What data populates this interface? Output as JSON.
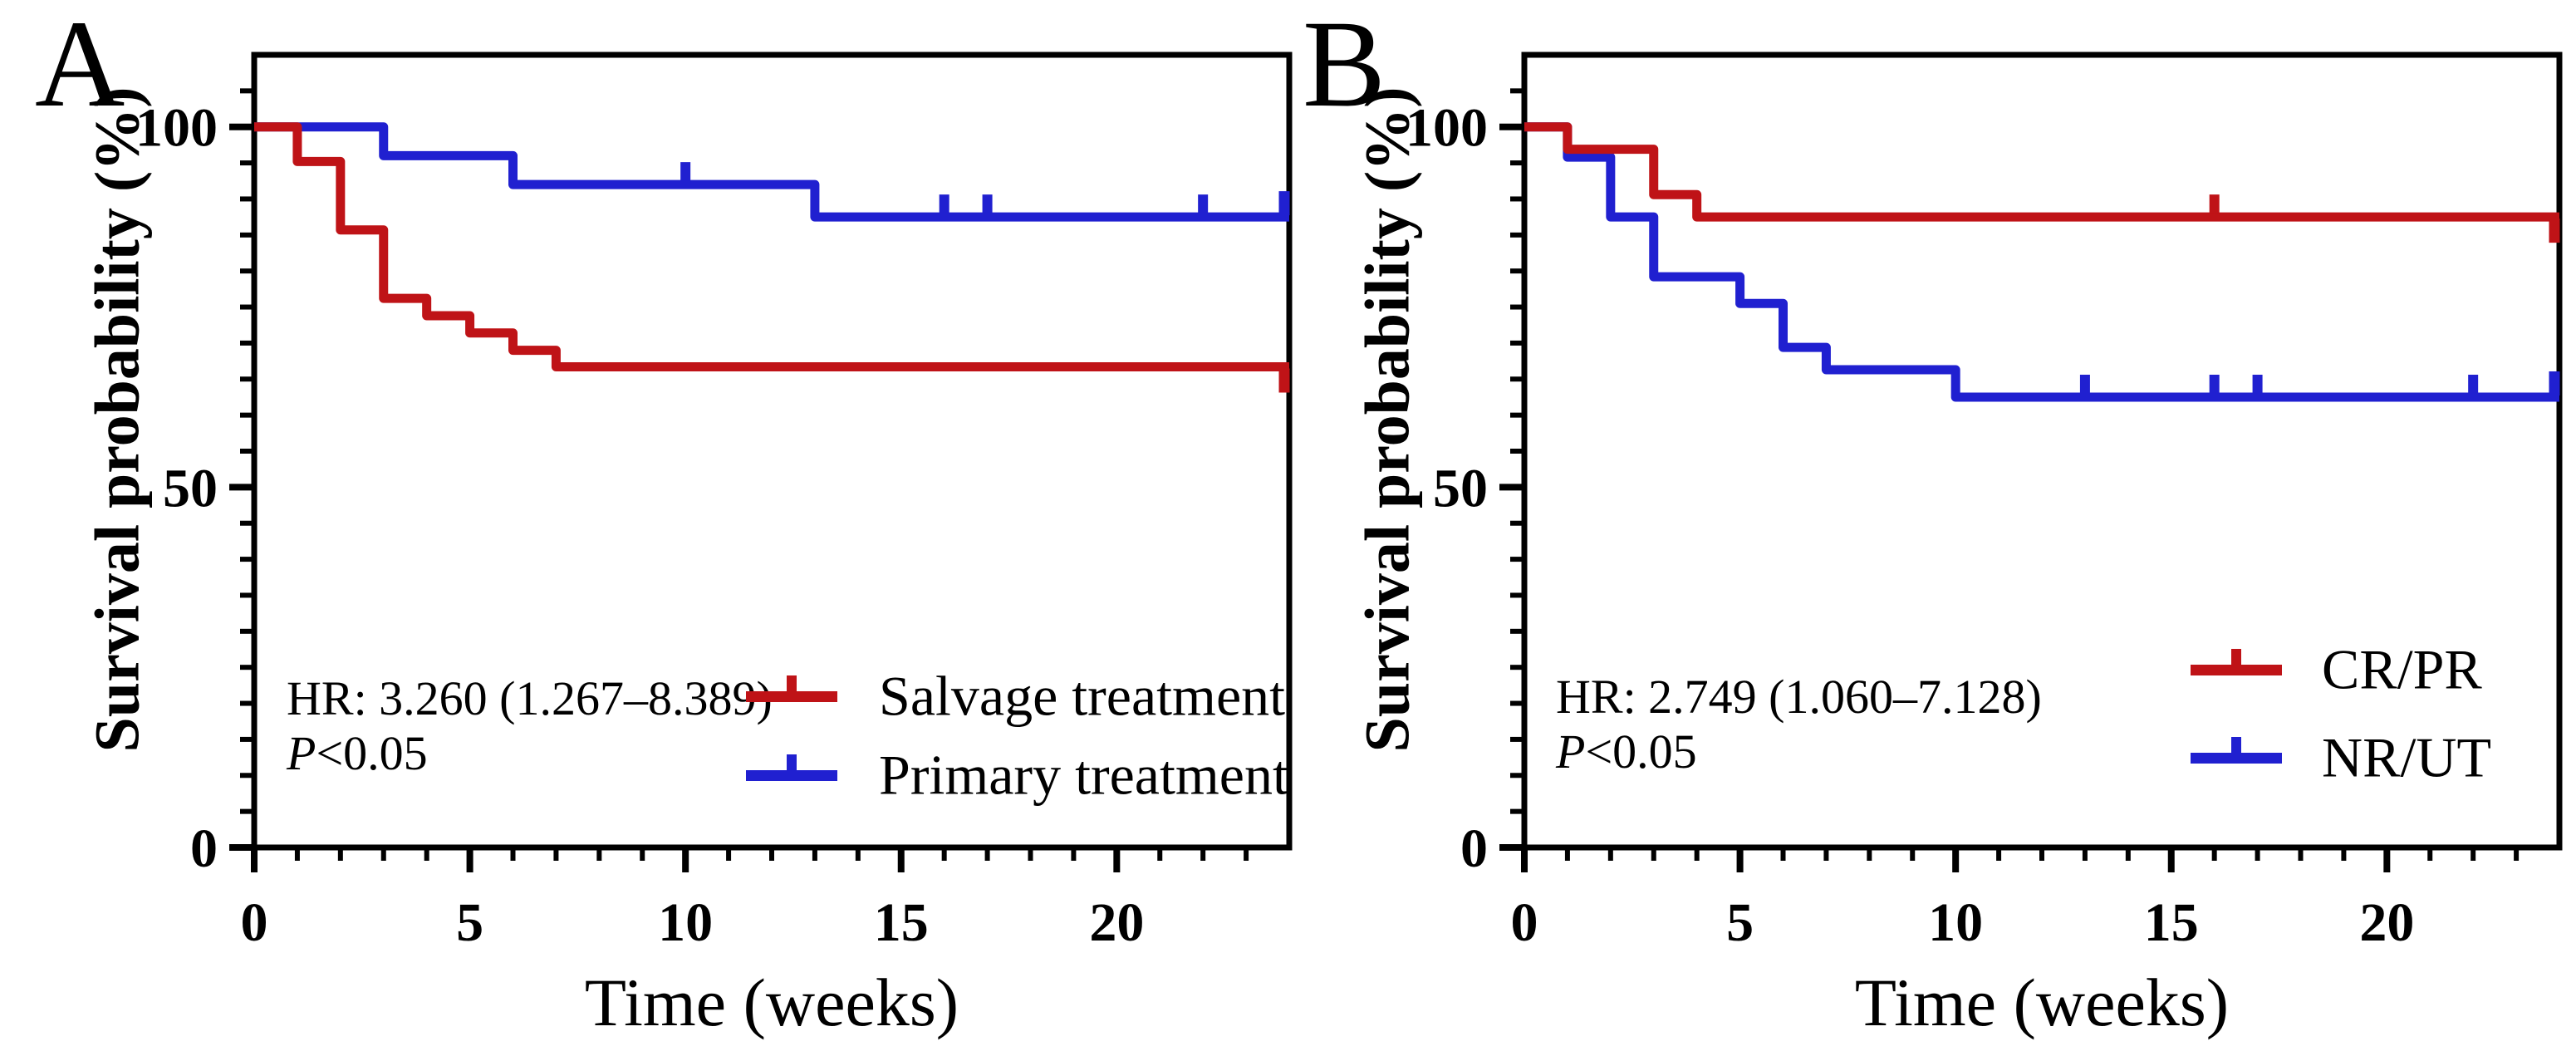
{
  "figure": {
    "panels": [
      {
        "letter": "A",
        "y_axis_title": "Survival probability (%)",
        "x_axis_title": "Time (weeks)",
        "annotation": {
          "hr": "HR: 3.260 (1.267–8.389)",
          "p_italic": "P",
          "p_rest": "<0.05"
        },
        "legend": [
          {
            "label": "Salvage treatment"
          },
          {
            "label": "Primary treatment"
          }
        ]
      },
      {
        "letter": "B",
        "y_axis_title": "Survival probability (%)",
        "x_axis_title": "Time (weeks)",
        "annotation": {
          "hr": "HR: 2.749 (1.060–7.128)",
          "p_italic": "P",
          "p_rest": "<0.05"
        },
        "legend": [
          {
            "label": "CR/PR"
          },
          {
            "label": "NR/UT"
          }
        ]
      }
    ]
  },
  "colors": {
    "red": "#bf1317",
    "blue": "#2020d0",
    "axis": "#000000"
  },
  "chart_data": [
    {
      "type": "line",
      "subtype": "kaplan-meier-step",
      "title": "A",
      "xlabel": "Time (weeks)",
      "ylabel": "Survival probability (%)",
      "xlim": [
        0,
        24
      ],
      "ylim": [
        0,
        110
      ],
      "x_major_ticks": [
        0,
        5,
        10,
        15,
        20
      ],
      "x_minor_step": 1,
      "y_major_ticks": [
        0,
        50,
        100
      ],
      "y_minor_step": 5,
      "grid": false,
      "legend_position": "inside-lower-right",
      "series": [
        {
          "name": "Salvage treatment",
          "color": "#bf1317",
          "step_points": [
            [
              0,
              100
            ],
            [
              1,
              95.2
            ],
            [
              2,
              85.7
            ],
            [
              3,
              76.2
            ],
            [
              4,
              73.8
            ],
            [
              5,
              71.4
            ],
            [
              6,
              69.0
            ],
            [
              7,
              66.7
            ]
          ],
          "end_x": 24,
          "censor_ticks": [],
          "terminal_tick": "down"
        },
        {
          "name": "Primary treatment",
          "color": "#2020d0",
          "step_points": [
            [
              0,
              100
            ],
            [
              3,
              96.0
            ],
            [
              6,
              92.0
            ],
            [
              13,
              87.5
            ]
          ],
          "end_x": 24,
          "censor_ticks": [
            10,
            16,
            17,
            22
          ],
          "terminal_tick": "up"
        }
      ]
    },
    {
      "type": "line",
      "subtype": "kaplan-meier-step",
      "title": "B",
      "xlabel": "Time (weeks)",
      "ylabel": "Survival probability (%)",
      "xlim": [
        0,
        24
      ],
      "ylim": [
        0,
        110
      ],
      "x_major_ticks": [
        0,
        5,
        10,
        15,
        20
      ],
      "x_minor_step": 1,
      "y_major_ticks": [
        0,
        50,
        100
      ],
      "y_minor_step": 5,
      "grid": false,
      "legend_position": "inside-lower-right",
      "series": [
        {
          "name": "CR/PR",
          "color": "#bf1317",
          "step_points": [
            [
              0,
              100
            ],
            [
              1,
              96.9
            ],
            [
              3,
              90.6
            ],
            [
              4,
              87.5
            ]
          ],
          "end_x": 24,
          "censor_ticks": [
            16
          ],
          "terminal_tick": "down"
        },
        {
          "name": "NR/UT",
          "color": "#2020d0",
          "step_points": [
            [
              0,
              100
            ],
            [
              1,
              95.8
            ],
            [
              2,
              87.5
            ],
            [
              3,
              79.2
            ],
            [
              5,
              75.5
            ],
            [
              6,
              69.4
            ],
            [
              7,
              66.3
            ],
            [
              10,
              62.5
            ]
          ],
          "end_x": 24,
          "censor_ticks": [
            13,
            16,
            17,
            22
          ],
          "terminal_tick": "up"
        }
      ]
    }
  ]
}
